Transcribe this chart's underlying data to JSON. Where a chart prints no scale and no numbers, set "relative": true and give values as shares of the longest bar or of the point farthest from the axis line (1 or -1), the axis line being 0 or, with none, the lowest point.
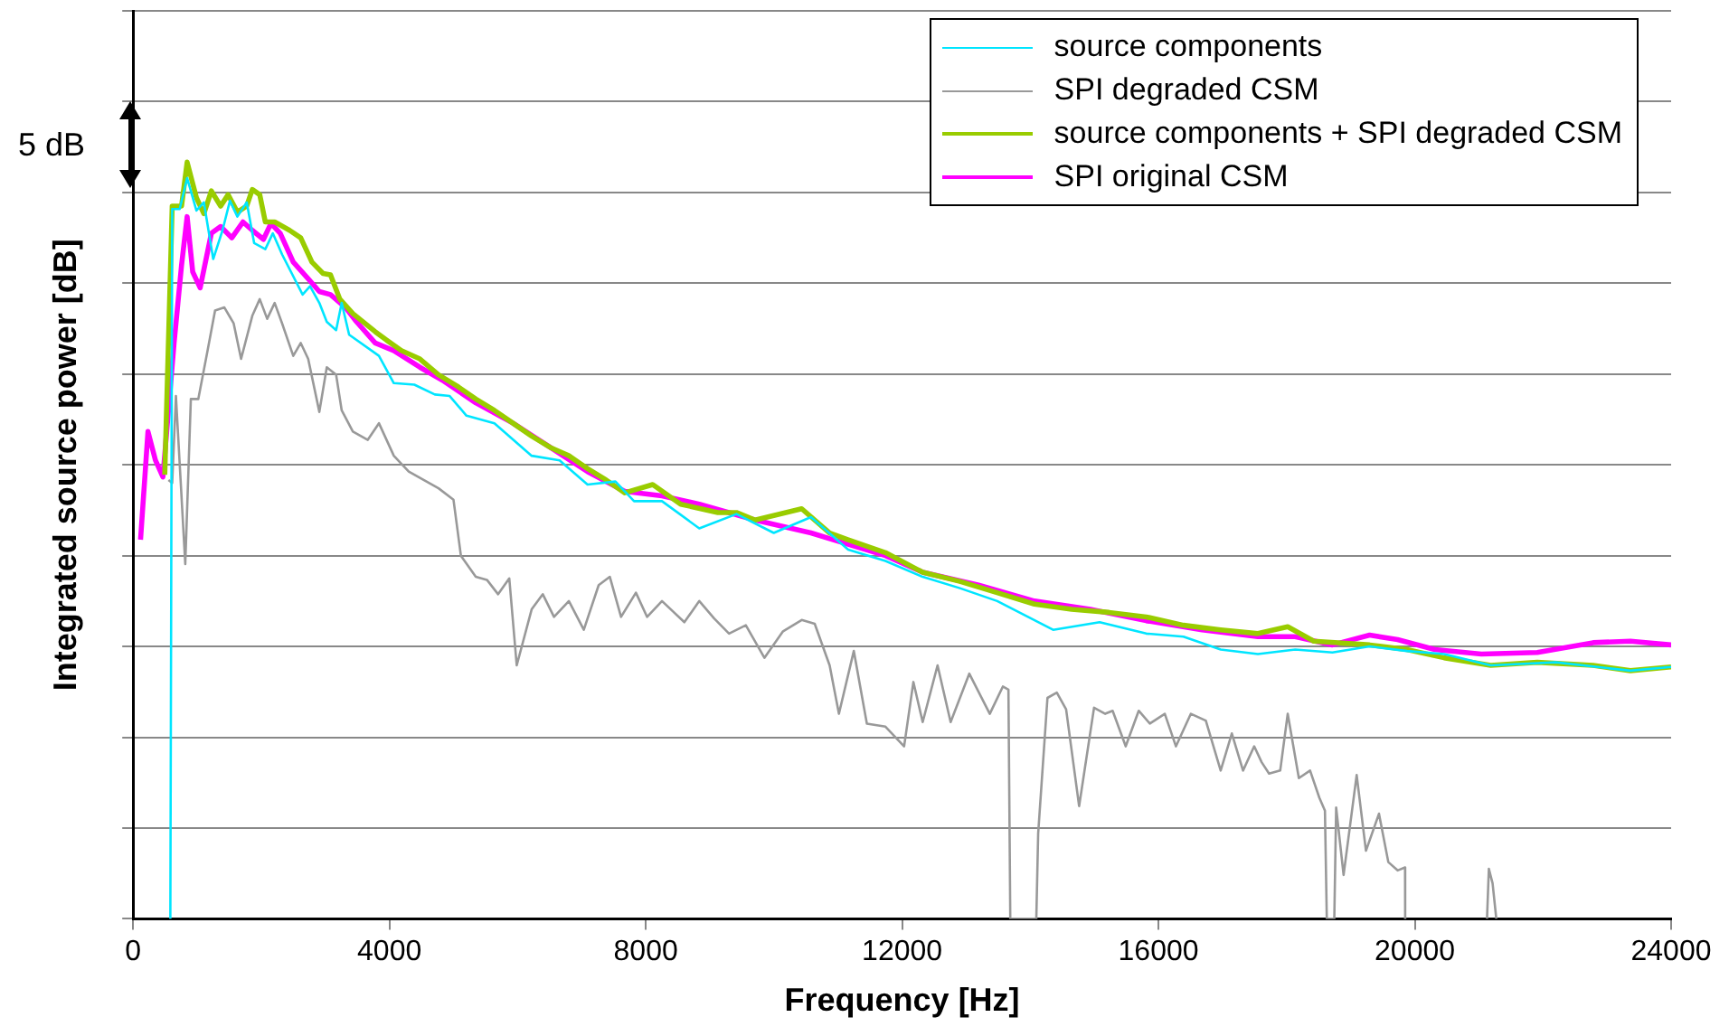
{
  "chart_data": {
    "type": "line",
    "xlabel": "Frequency [Hz]",
    "ylabel": "Integrated source power [dB]",
    "relative": true,
    "xlim": [
      0,
      24000
    ],
    "xticks": [
      0,
      4000,
      8000,
      12000,
      16000,
      20000,
      24000
    ],
    "grid": "y",
    "legend": "top right",
    "marker": "none",
    "annotations": [
      "5 dB"
    ],
    "series": [
      {
        "name": "source components",
        "color": "#00e5ff",
        "x": [
          581,
          610,
          727,
          843,
          988,
          1104,
          1250,
          1395,
          1511,
          1627,
          1773,
          1889,
          2063,
          2180,
          2325,
          2645,
          2761,
          2906,
          3022,
          3168,
          3255,
          3371,
          3836,
          4068,
          4388,
          4708,
          4940,
          5202,
          5638,
          6219,
          6655,
          7091,
          7527,
          7817,
          8253,
          8835,
          9415,
          9997,
          10578,
          11159,
          11740,
          12321,
          12902,
          13484,
          14356,
          15082,
          15809,
          16390,
          16971,
          17552,
          18134,
          18715,
          19296,
          19877,
          20458,
          21185,
          22202,
          23364,
          24000
        ],
        "values": [
          0,
          0.938,
          0.938,
          0.979,
          0.936,
          0.947,
          0.872,
          0.91,
          0.949,
          0.928,
          0.947,
          0.893,
          0.885,
          0.906,
          0.878,
          0.825,
          0.836,
          0.814,
          0.789,
          0.778,
          0.814,
          0.772,
          0.744,
          0.708,
          0.706,
          0.693,
          0.691,
          0.665,
          0.655,
          0.612,
          0.606,
          0.574,
          0.578,
          0.552,
          0.552,
          0.516,
          0.535,
          0.51,
          0.531,
          0.488,
          0.473,
          0.452,
          0.437,
          0.42,
          0.382,
          0.392,
          0.377,
          0.373,
          0.356,
          0.35,
          0.356,
          0.352,
          0.36,
          0.354,
          0.35,
          0.335,
          0.339,
          0.328,
          0.333
        ]
      },
      {
        "name": "SPI degraded CSM",
        "color": "#999999",
        "x": [
          552,
          610,
          668,
          814,
          901,
          1017,
          1162,
          1279,
          1424,
          1569,
          1685,
          1860,
          1976,
          2092,
          2209,
          2325,
          2499,
          2616,
          2732,
          2906,
          3022,
          3168,
          3255,
          3429,
          3662,
          3836,
          4068,
          4301,
          4766,
          4999,
          5115,
          5347,
          5521,
          5696,
          5870,
          5986,
          6219,
          6393,
          6568,
          6800,
          7033,
          7265,
          7439,
          7614,
          7846,
          8021,
          8253,
          8602,
          8835,
          9067,
          9299,
          9561,
          9851,
          10142,
          10433,
          10636,
          10869,
          11014,
          11246,
          11450,
          11740,
          12031,
          12176,
          12321,
          12553,
          12757,
          13048,
          13368,
          13572,
          13659,
          13688,
          14094,
          14123,
          14268,
          14414,
          14559,
          14762,
          14995,
          15169,
          15285,
          15489,
          15692,
          15866,
          16099,
          16273,
          16506,
          16739,
          16971,
          17145,
          17320,
          17494,
          17610,
          17726,
          17900,
          18017,
          18191,
          18366,
          18511,
          18598,
          18627,
          18744,
          18773,
          18889,
          19093,
          19238,
          19441,
          19587,
          19732,
          19848,
          19850,
          20500,
          21127,
          21156,
          21214,
          21272
        ],
        "values": [
          0.58,
          0.576,
          0.691,
          0.469,
          0.687,
          0.687,
          0.751,
          0.804,
          0.808,
          0.787,
          0.74,
          0.797,
          0.819,
          0.793,
          0.814,
          0.787,
          0.744,
          0.761,
          0.74,
          0.67,
          0.729,
          0.719,
          0.672,
          0.644,
          0.633,
          0.655,
          0.612,
          0.591,
          0.569,
          0.554,
          0.48,
          0.452,
          0.448,
          0.429,
          0.45,
          0.335,
          0.409,
          0.429,
          0.399,
          0.42,
          0.382,
          0.441,
          0.452,
          0.399,
          0.431,
          0.399,
          0.42,
          0.392,
          0.42,
          0.397,
          0.377,
          0.388,
          0.345,
          0.38,
          0.395,
          0.39,
          0.335,
          0.271,
          0.354,
          0.258,
          0.254,
          0.228,
          0.313,
          0.26,
          0.335,
          0.26,
          0.324,
          0.271,
          0.307,
          0.303,
          0,
          0,
          0.113,
          0.292,
          0.299,
          0.277,
          0.149,
          0.279,
          0.271,
          0.275,
          0.228,
          0.275,
          0.258,
          0.271,
          0.228,
          0.271,
          0.262,
          0.196,
          0.245,
          0.196,
          0.228,
          0.207,
          0.192,
          0.196,
          0.271,
          0.186,
          0.196,
          0.16,
          0.143,
          0,
          0,
          0.147,
          0.058,
          0.19,
          0.09,
          0.139,
          0.075,
          0.064,
          0.068,
          0,
          null,
          0,
          0.066,
          0.047,
          0
        ]
      },
      {
        "name": "source components + SPI degraded CSM",
        "color": "#99cc00",
        "x": [
          494,
          610,
          756,
          843,
          988,
          1104,
          1221,
          1366,
          1482,
          1627,
          1773,
          1860,
          1976,
          2063,
          2209,
          2441,
          2616,
          2790,
          2964,
          3080,
          3226,
          3429,
          3778,
          3952,
          4185,
          4475,
          4766,
          5057,
          5347,
          5638,
          5928,
          6219,
          6510,
          6800,
          7091,
          7381,
          7672,
          8108,
          8544,
          9125,
          9415,
          9706,
          10433,
          10869,
          11159,
          11740,
          12321,
          12902,
          13484,
          14065,
          14646,
          15227,
          15809,
          16390,
          16971,
          17552,
          18017,
          18424,
          19296,
          19877,
          20458,
          21185,
          21911,
          22783,
          23364,
          24000
        ],
        "values": [
          0.587,
          0.942,
          0.942,
          1,
          0.953,
          0.932,
          0.962,
          0.942,
          0.957,
          0.934,
          0.942,
          0.964,
          0.957,
          0.921,
          0.921,
          0.91,
          0.9,
          0.868,
          0.853,
          0.851,
          0.819,
          0.8,
          0.776,
          0.765,
          0.751,
          0.74,
          0.719,
          0.704,
          0.687,
          0.672,
          0.655,
          0.638,
          0.623,
          0.612,
          0.595,
          0.58,
          0.563,
          0.574,
          0.548,
          0.537,
          0.537,
          0.527,
          0.542,
          0.51,
          0.501,
          0.484,
          0.458,
          0.446,
          0.431,
          0.416,
          0.409,
          0.405,
          0.399,
          0.388,
          0.382,
          0.377,
          0.386,
          0.367,
          0.362,
          0.356,
          0.345,
          0.335,
          0.339,
          0.335,
          0.328,
          0.333
        ]
      },
      {
        "name": "SPI original CSM",
        "color": "#ff00ff",
        "x": [
          116,
          232,
          349,
          465,
          639,
          756,
          843,
          930,
          1046,
          1221,
          1366,
          1540,
          1714,
          1860,
          2034,
          2151,
          2296,
          2499,
          2732,
          2906,
          3080,
          3313,
          3487,
          3778,
          4068,
          4475,
          4824,
          5347,
          5928,
          6510,
          7091,
          7672,
          8253,
          8835,
          9706,
          10578,
          11159,
          11740,
          12321,
          13193,
          14065,
          14937,
          15809,
          16681,
          17552,
          18134,
          18715,
          19296,
          19732,
          20313,
          21040,
          21911,
          22783,
          23364,
          24000
        ],
        "values": [
          0.501,
          0.644,
          0.606,
          0.584,
          0.761,
          0.864,
          0.928,
          0.855,
          0.834,
          0.906,
          0.915,
          0.9,
          0.921,
          0.91,
          0.898,
          0.919,
          0.906,
          0.868,
          0.846,
          0.829,
          0.825,
          0.808,
          0.789,
          0.761,
          0.751,
          0.729,
          0.712,
          0.682,
          0.655,
          0.623,
          0.591,
          0.565,
          0.559,
          0.548,
          0.527,
          0.51,
          0.495,
          0.48,
          0.458,
          0.441,
          0.42,
          0.409,
          0.394,
          0.382,
          0.373,
          0.373,
          0.362,
          0.375,
          0.369,
          0.356,
          0.35,
          0.352,
          0.365,
          0.367,
          0.362
        ]
      }
    ]
  }
}
